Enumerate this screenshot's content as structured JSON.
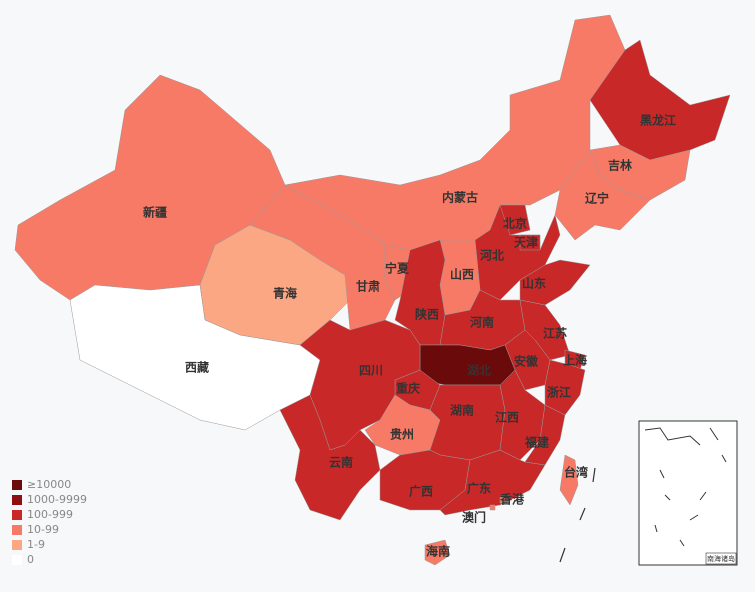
{
  "legend": [
    {
      "label": "≥10000",
      "color": "#6b0a0a"
    },
    {
      "label": "1000-9999",
      "color": "#8f1010"
    },
    {
      "label": "100-999",
      "color": "#c92828"
    },
    {
      "label": "10-99",
      "color": "#f77a66"
    },
    {
      "label": "1-9",
      "color": "#fca783"
    },
    {
      "label": "0",
      "color": "#ffffff"
    }
  ],
  "provinces": [
    {
      "name": "新疆",
      "color": "#f77a66"
    },
    {
      "name": "西藏",
      "color": "#ffffff"
    },
    {
      "name": "青海",
      "color": "#fca783"
    },
    {
      "name": "甘肃",
      "color": "#f77a66"
    },
    {
      "name": "内蒙古",
      "color": "#f77a66"
    },
    {
      "name": "黑龙江",
      "color": "#c92828"
    },
    {
      "name": "吉林",
      "color": "#f77a66"
    },
    {
      "name": "辽宁",
      "color": "#f77a66"
    },
    {
      "name": "河北",
      "color": "#c92828"
    },
    {
      "name": "北京",
      "color": "#c92828"
    },
    {
      "name": "天津",
      "color": "#c92828"
    },
    {
      "name": "山西",
      "color": "#f77a66"
    },
    {
      "name": "宁夏",
      "color": "#f77a66"
    },
    {
      "name": "陕西",
      "color": "#c92828"
    },
    {
      "name": "山东",
      "color": "#c92828"
    },
    {
      "name": "河南",
      "color": "#c92828"
    },
    {
      "name": "江苏",
      "color": "#c92828"
    },
    {
      "name": "安徽",
      "color": "#c92828"
    },
    {
      "name": "上海",
      "color": "#c92828"
    },
    {
      "name": "浙江",
      "color": "#c92828"
    },
    {
      "name": "湖北",
      "color": "#6b0a0a"
    },
    {
      "name": "重庆",
      "color": "#c92828"
    },
    {
      "name": "四川",
      "color": "#c92828"
    },
    {
      "name": "贵州",
      "color": "#f77a66"
    },
    {
      "name": "云南",
      "color": "#c92828"
    },
    {
      "name": "湖南",
      "color": "#c92828"
    },
    {
      "name": "江西",
      "color": "#c92828"
    },
    {
      "name": "福建",
      "color": "#c92828"
    },
    {
      "name": "广西",
      "color": "#c92828"
    },
    {
      "name": "广东",
      "color": "#c92828"
    },
    {
      "name": "海南",
      "color": "#f77a66"
    },
    {
      "name": "台湾",
      "color": "#f77a66"
    },
    {
      "name": "香港",
      "color": "#f77a66"
    },
    {
      "name": "澳门",
      "color": "#f77a66"
    }
  ],
  "inset_label": "南海诸岛"
}
